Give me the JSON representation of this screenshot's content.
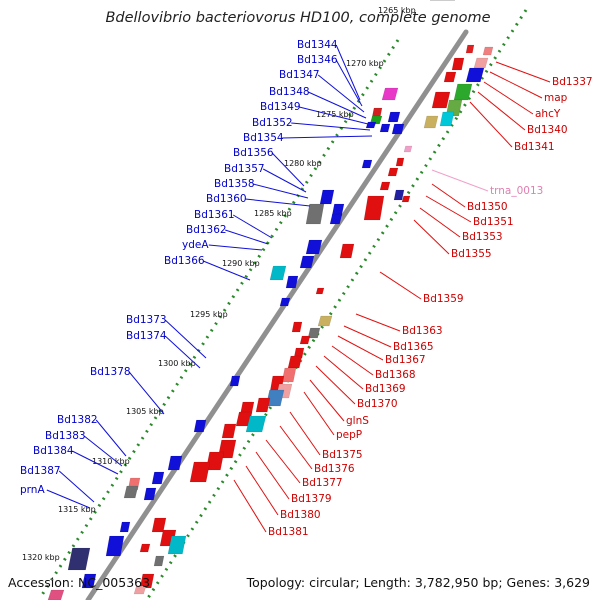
{
  "title": "Bdellovibrio bacteriovorus HD100, complete genome",
  "footer": {
    "accession": "Accession: NC_005363",
    "summary": "Topology: circular; Length: 3,782,950 bp; Genes: 3,629"
  },
  "ticks": [
    "1265 kbp",
    "1270 kbp",
    "1275 kbp",
    "1280 kbp",
    "1285 kbp",
    "1290 kbp",
    "1295 kbp",
    "1300 kbp",
    "1305 kbp",
    "1310 kbp",
    "1315 kbp",
    "1320 kbp"
  ],
  "colors": {
    "minus_strand": "#1010d8",
    "plus_strand": "#e01010",
    "trna": "#f0a0c8",
    "backbone": "#909090",
    "tick": "#2a8a2a"
  },
  "left_labels": [
    "Bd1344",
    "Bd1346",
    "Bd1347",
    "Bd1348",
    "Bd1349",
    "Bd1352",
    "Bd1354",
    "Bd1356",
    "Bd1357",
    "Bd1358",
    "Bd1360",
    "Bd1361",
    "Bd1362",
    "ydeA",
    "Bd1366",
    "Bd1373",
    "Bd1374",
    "Bd1378",
    "Bd1382",
    "Bd1383",
    "Bd1384",
    "Bd1387",
    "prnA"
  ],
  "right_labels": [
    "Bd1337",
    "map",
    "ahcY",
    "Bd1340",
    "Bd1341",
    "trna_0013",
    "Bd1350",
    "Bd1351",
    "Bd1353",
    "Bd1355",
    "Bd1359",
    "Bd1363",
    "Bd1365",
    "Bd1367",
    "Bd1368",
    "Bd1369",
    "Bd1370",
    "glnS",
    "pepP",
    "Bd1375",
    "Bd1376",
    "Bd1377",
    "Bd1379",
    "Bd1380",
    "Bd1381"
  ]
}
